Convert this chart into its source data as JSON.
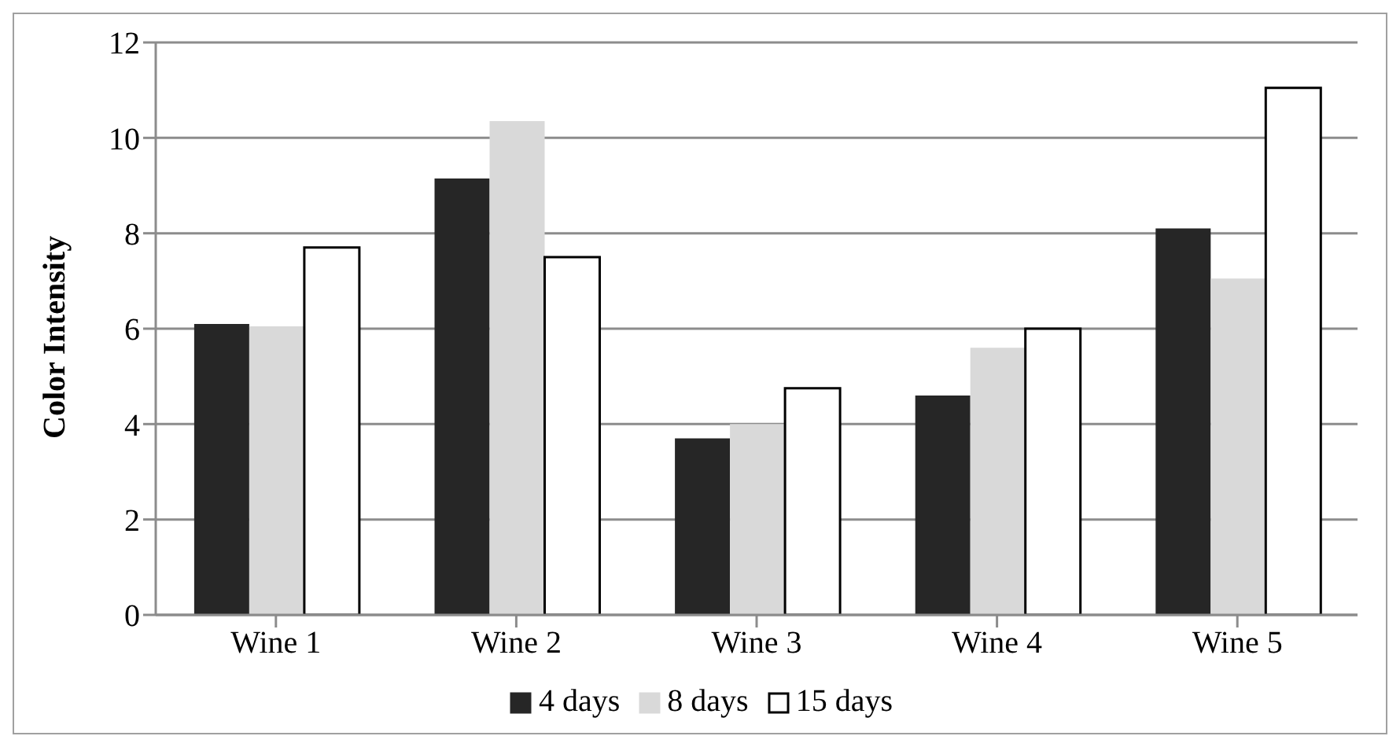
{
  "chart_data": {
    "type": "bar",
    "ylabel": "Color Intensity",
    "categories": [
      "Wine 1",
      "Wine 2",
      "Wine 3",
      "Wine 4",
      "Wine 5"
    ],
    "series": [
      {
        "name": "4 days",
        "color": "#262626",
        "values": [
          6.1,
          9.15,
          3.7,
          4.6,
          8.1
        ]
      },
      {
        "name": "8 days",
        "color": "#d9d9d9",
        "values": [
          6.05,
          10.35,
          4.0,
          5.6,
          7.05
        ]
      },
      {
        "name": "15 days",
        "color": "#ffffff",
        "values": [
          7.7,
          7.5,
          4.75,
          6.0,
          11.05
        ]
      }
    ],
    "ylim": [
      0,
      12
    ],
    "yticks": [
      0,
      2,
      4,
      6,
      8,
      10,
      12
    ],
    "grid": "y",
    "legend": "bottom"
  }
}
